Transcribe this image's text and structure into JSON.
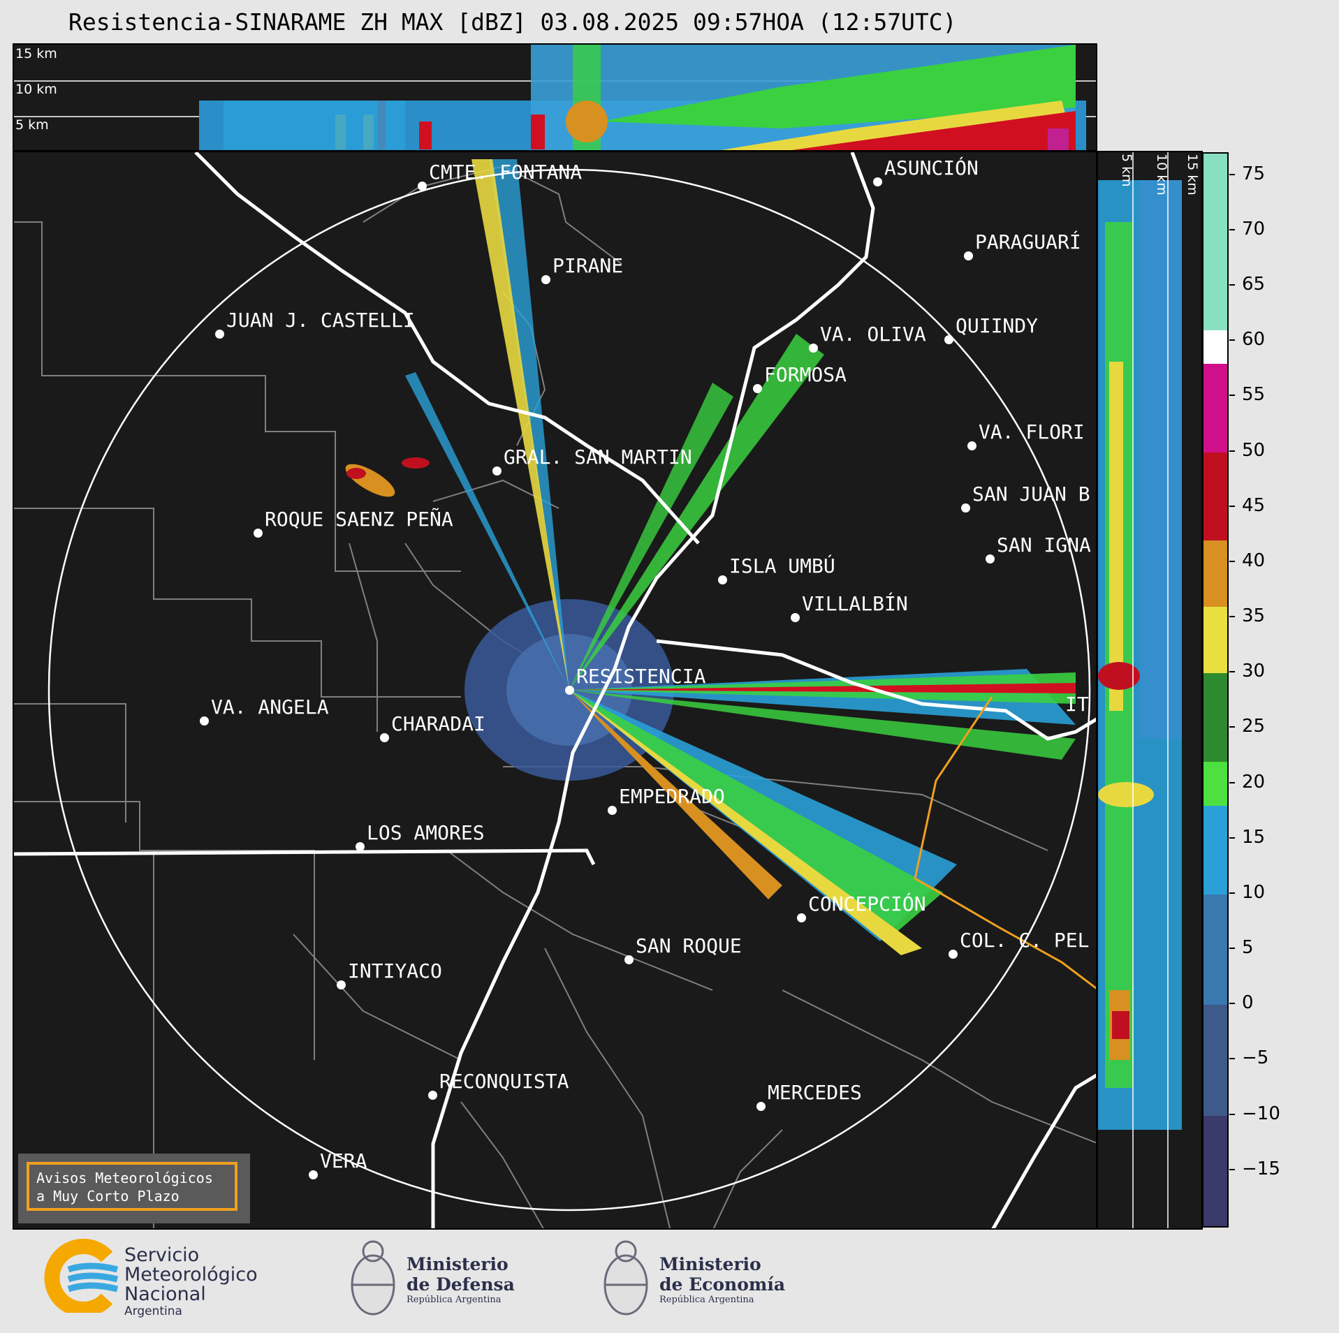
{
  "title": "Resistencia-SINARAME ZH MAX [dBZ] 03.08.2025 09:57HOA (12:57UTC)",
  "top_panel": {
    "labels": [
      "15 km",
      "10 km",
      "5 km"
    ]
  },
  "side_panel": {
    "labels": [
      "5 km",
      "10 km",
      "15 km"
    ]
  },
  "colorbar": {
    "ticks": [
      "75",
      "70",
      "65",
      "60",
      "55",
      "50",
      "45",
      "40",
      "35",
      "30",
      "25",
      "20",
      "15",
      "10",
      "5",
      "0",
      "−5",
      "−10",
      "−15"
    ],
    "range": [
      -20,
      77
    ],
    "colors": [
      {
        "from": -20,
        "to": -10,
        "color": "#3b3a6b"
      },
      {
        "from": -10,
        "to": 0,
        "color": "#3d5a8a"
      },
      {
        "from": 0,
        "to": 10,
        "color": "#3a78b0"
      },
      {
        "from": 10,
        "to": 18,
        "color": "#2aa0d8"
      },
      {
        "from": 18,
        "to": 22,
        "color": "#4ee040"
      },
      {
        "from": 22,
        "to": 30,
        "color": "#2e8a2e"
      },
      {
        "from": 30,
        "to": 36,
        "color": "#e8e040"
      },
      {
        "from": 36,
        "to": 42,
        "color": "#d89020"
      },
      {
        "from": 42,
        "to": 50,
        "color": "#c01020"
      },
      {
        "from": 50,
        "to": 58,
        "color": "#d0108a"
      },
      {
        "from": 58,
        "to": 61,
        "color": "#ffffff"
      },
      {
        "from": 61,
        "to": 77,
        "color": "#88e0c0"
      }
    ]
  },
  "cities": [
    {
      "name": "CMTE. FONTANA"
    },
    {
      "name": "ASUNCIÓN"
    },
    {
      "name": "PARAGUARÍ"
    },
    {
      "name": "PIRANE"
    },
    {
      "name": "JUAN J. CASTELLI"
    },
    {
      "name": "VA. OLIVA"
    },
    {
      "name": "QUIINDY"
    },
    {
      "name": "FORMOSA"
    },
    {
      "name": "VA. FLORI"
    },
    {
      "name": "GRAL. SAN MARTIN"
    },
    {
      "name": "SAN JUAN B"
    },
    {
      "name": "ROQUE SAENZ PEÑA"
    },
    {
      "name": "SAN IGNA"
    },
    {
      "name": "ISLA UMBÚ"
    },
    {
      "name": "VILLALBÍN"
    },
    {
      "name": "RESISTENCIA"
    },
    {
      "name": "VA. ANGELA"
    },
    {
      "name": "CHARADAI"
    },
    {
      "name": "EMPEDRADO"
    },
    {
      "name": "LOS AMORES"
    },
    {
      "name": "CONCEPCIÓN"
    },
    {
      "name": "SAN ROQUE"
    },
    {
      "name": "COL. C. PEL"
    },
    {
      "name": "INTIYACO"
    },
    {
      "name": "RECONQUISTA"
    },
    {
      "name": "MERCEDES"
    },
    {
      "name": "VERA"
    },
    {
      "name": "IT"
    }
  ],
  "warning_box": {
    "line1": "Avisos Meteorológicos",
    "line2": "a Muy Corto Plazo"
  },
  "logos": {
    "smn": {
      "line1": "Servicio",
      "line2": "Meteorológico",
      "line3": "Nacional",
      "line4": "Argentina"
    },
    "defensa": {
      "line1": "Ministerio",
      "line2": "de Defensa",
      "line3": "República Argentina"
    },
    "economia": {
      "line1": "Ministerio",
      "line2": "de Economía",
      "line3": "República Argentina"
    }
  }
}
